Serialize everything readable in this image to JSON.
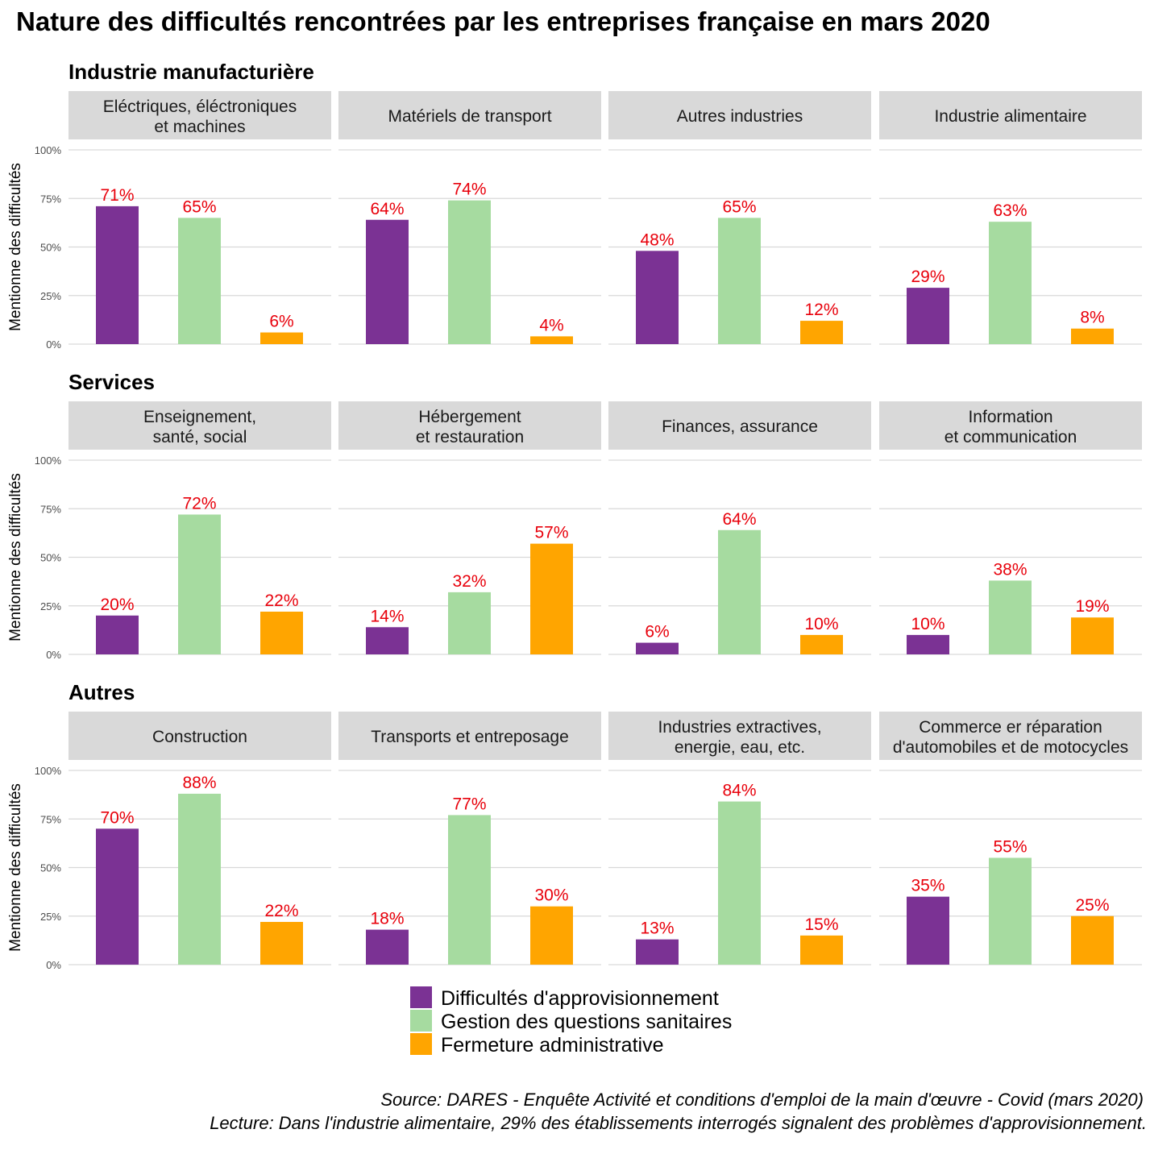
{
  "chart_data": {
    "type": "bar",
    "title": "Nature des difficultés rencontrées par les entreprises française en mars 2020",
    "ylabel": "Mentionne des difficultés",
    "ylim": [
      0,
      1
    ],
    "y_ticks": [
      "0%",
      "25%",
      "50%",
      "75%",
      "100%"
    ],
    "grid": true,
    "legend_position": "bottom",
    "series": [
      {
        "name": "Difficultés d'approvisionnement",
        "color": "#7b3294"
      },
      {
        "name": "Gestion des questions sanitaires",
        "color": "#a6dba0"
      },
      {
        "name": "Fermeture administrative",
        "color": "#ffa500"
      }
    ],
    "sections": [
      {
        "title": "Industrie manufacturière",
        "panels": [
          {
            "label": [
              "Eléctriques, éléctroniques",
              "et machines"
            ],
            "values": [
              0.71,
              0.65,
              0.06
            ],
            "value_labels": [
              "71%",
              "65%",
              "6%"
            ]
          },
          {
            "label": [
              "Matériels de transport"
            ],
            "values": [
              0.64,
              0.74,
              0.04
            ],
            "value_labels": [
              "64%",
              "74%",
              "4%"
            ]
          },
          {
            "label": [
              "Autres industries"
            ],
            "values": [
              0.48,
              0.65,
              0.12
            ],
            "value_labels": [
              "48%",
              "65%",
              "12%"
            ]
          },
          {
            "label": [
              "Industrie alimentaire"
            ],
            "values": [
              0.29,
              0.63,
              0.08
            ],
            "value_labels": [
              "29%",
              "63%",
              "8%"
            ]
          }
        ]
      },
      {
        "title": "Services",
        "panels": [
          {
            "label": [
              "Enseignement,",
              "santé, social"
            ],
            "values": [
              0.2,
              0.72,
              0.22
            ],
            "value_labels": [
              "20%",
              "72%",
              "22%"
            ]
          },
          {
            "label": [
              "Hébergement",
              "et restauration"
            ],
            "values": [
              0.14,
              0.32,
              0.57
            ],
            "value_labels": [
              "14%",
              "32%",
              "57%"
            ]
          },
          {
            "label": [
              "Finances, assurance"
            ],
            "values": [
              0.06,
              0.64,
              0.1
            ],
            "value_labels": [
              "6%",
              "64%",
              "10%"
            ]
          },
          {
            "label": [
              "Information",
              "et communication"
            ],
            "values": [
              0.1,
              0.38,
              0.19
            ],
            "value_labels": [
              "10%",
              "38%",
              "19%"
            ]
          }
        ]
      },
      {
        "title": "Autres",
        "panels": [
          {
            "label": [
              "Construction"
            ],
            "values": [
              0.7,
              0.88,
              0.22
            ],
            "value_labels": [
              "70%",
              "88%",
              "22%"
            ]
          },
          {
            "label": [
              "Transports et entreposage"
            ],
            "values": [
              0.18,
              0.77,
              0.3
            ],
            "value_labels": [
              "18%",
              "77%",
              "30%"
            ]
          },
          {
            "label": [
              "Industries extractives,",
              "energie, eau, etc."
            ],
            "values": [
              0.13,
              0.84,
              0.15
            ],
            "value_labels": [
              "13%",
              "84%",
              "15%"
            ]
          },
          {
            "label": [
              "Commerce er réparation",
              "d'automobiles et de motocycles"
            ],
            "values": [
              0.35,
              0.55,
              0.25
            ],
            "value_labels": [
              "35%",
              "55%",
              "25%"
            ]
          }
        ]
      }
    ],
    "caption": [
      "Source: DARES - Enquête Activité et conditions d'emploi de la main d'œuvre - Covid (mars 2020)",
      "Lecture: Dans l'industrie alimentaire, 29% des établissements interrogés signalent des problèmes d'approvisionnement."
    ]
  }
}
